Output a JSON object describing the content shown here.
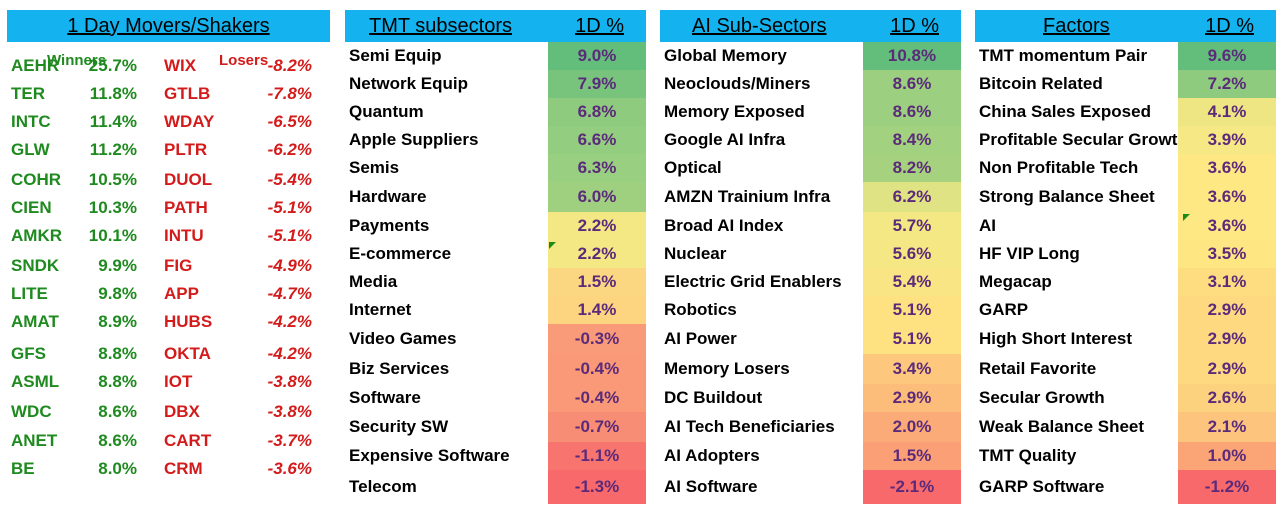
{
  "movers": {
    "title": "1 Day Movers/Shakers",
    "winners_label": "Winners",
    "losers_label": "Losers",
    "winners": [
      {
        "ticker": "AEHR",
        "pct": "25.7%"
      },
      {
        "ticker": "TER",
        "pct": "11.8%"
      },
      {
        "ticker": "INTC",
        "pct": "11.4%"
      },
      {
        "ticker": "GLW",
        "pct": "11.2%"
      },
      {
        "ticker": "COHR",
        "pct": "10.5%"
      },
      {
        "ticker": "CIEN",
        "pct": "10.3%"
      },
      {
        "ticker": "AMKR",
        "pct": "10.1%"
      },
      {
        "ticker": "SNDK",
        "pct": "9.9%"
      },
      {
        "ticker": "LITE",
        "pct": "9.8%"
      },
      {
        "ticker": "AMAT",
        "pct": "8.9%"
      },
      {
        "ticker": "GFS",
        "pct": "8.8%"
      },
      {
        "ticker": "ASML",
        "pct": "8.8%"
      },
      {
        "ticker": "WDC",
        "pct": "8.6%"
      },
      {
        "ticker": "ANET",
        "pct": "8.6%"
      },
      {
        "ticker": "BE",
        "pct": "8.0%"
      }
    ],
    "losers": [
      {
        "ticker": "WIX",
        "pct": "-8.2%"
      },
      {
        "ticker": "GTLB",
        "pct": "-7.8%"
      },
      {
        "ticker": "WDAY",
        "pct": "-6.5%"
      },
      {
        "ticker": "PLTR",
        "pct": "-6.2%"
      },
      {
        "ticker": "DUOL",
        "pct": "-5.4%"
      },
      {
        "ticker": "PATH",
        "pct": "-5.1%"
      },
      {
        "ticker": "INTU",
        "pct": "-5.1%"
      },
      {
        "ticker": "FIG",
        "pct": "-4.9%"
      },
      {
        "ticker": "APP",
        "pct": "-4.7%"
      },
      {
        "ticker": "HUBS",
        "pct": "-4.2%"
      },
      {
        "ticker": "OKTA",
        "pct": "-4.2%"
      },
      {
        "ticker": "IOT",
        "pct": "-3.8%"
      },
      {
        "ticker": "DBX",
        "pct": "-3.8%"
      },
      {
        "ticker": "CART",
        "pct": "-3.7%"
      },
      {
        "ticker": "CRM",
        "pct": "-3.6%"
      }
    ]
  },
  "tmt": {
    "title": "TMT subsectors",
    "col": "1D %",
    "rows": [
      {
        "name": "Semi Equip",
        "pct": "9.0%",
        "color": "#63be7b"
      },
      {
        "name": "Network Equip",
        "pct": "7.9%",
        "color": "#79c47d"
      },
      {
        "name": "Quantum",
        "pct": "6.8%",
        "color": "#8ecb7e"
      },
      {
        "name": "Apple Suppliers",
        "pct": "6.6%",
        "color": "#93cd7f"
      },
      {
        "name": "Semis",
        "pct": "6.3%",
        "color": "#98cf80"
      },
      {
        "name": "Hardware",
        "pct": "6.0%",
        "color": "#9ed080"
      },
      {
        "name": "Payments",
        "pct": "2.2%",
        "color": "#f4e884"
      },
      {
        "name": "E-commerce",
        "pct": "2.2%",
        "color": "#f4e884"
      },
      {
        "name": "Media",
        "pct": "1.5%",
        "color": "#fcd781"
      },
      {
        "name": "Internet",
        "pct": "1.4%",
        "color": "#fdd480"
      },
      {
        "name": "Video Games",
        "pct": "-0.3%",
        "color": "#f99a78"
      },
      {
        "name": "Biz Services",
        "pct": "-0.4%",
        "color": "#f99977"
      },
      {
        "name": "Software",
        "pct": "-0.4%",
        "color": "#f99977"
      },
      {
        "name": "Security SW",
        "pct": "-0.7%",
        "color": "#f88d75"
      },
      {
        "name": "Expensive Software",
        "pct": "-1.1%",
        "color": "#f8756f"
      },
      {
        "name": "Telecom",
        "pct": "-1.3%",
        "color": "#f8696b"
      }
    ]
  },
  "ai": {
    "title": "AI Sub-Sectors",
    "col": "1D %",
    "rows": [
      {
        "name": "Global Memory",
        "pct": "10.8%",
        "color": "#63be7b"
      },
      {
        "name": "Neoclouds/Miners",
        "pct": "8.6%",
        "color": "#9ccf7f"
      },
      {
        "name": "Memory Exposed",
        "pct": "8.6%",
        "color": "#9ccf7f"
      },
      {
        "name": "Google AI Infra",
        "pct": "8.4%",
        "color": "#a2d17f"
      },
      {
        "name": "Optical",
        "pct": "8.2%",
        "color": "#a6d27f"
      },
      {
        "name": "AMZN Trainium Infra",
        "pct": "6.2%",
        "color": "#e0e383"
      },
      {
        "name": "Broad AI Index",
        "pct": "5.7%",
        "color": "#f3e884"
      },
      {
        "name": "Nuclear",
        "pct": "5.6%",
        "color": "#f5e884"
      },
      {
        "name": "Electric Grid Enablers",
        "pct": "5.4%",
        "color": "#f9e584"
      },
      {
        "name": "Robotics",
        "pct": "5.1%",
        "color": "#fee282"
      },
      {
        "name": "AI Power",
        "pct": "5.1%",
        "color": "#fee282"
      },
      {
        "name": "Memory Losers",
        "pct": "3.4%",
        "color": "#fdc77d"
      },
      {
        "name": "DC Buildout",
        "pct": "2.9%",
        "color": "#fcbd7b"
      },
      {
        "name": "AI Tech Beneficiaries",
        "pct": "2.0%",
        "color": "#fbab78"
      },
      {
        "name": "AI Adopters",
        "pct": "1.5%",
        "color": "#fba076"
      },
      {
        "name": "AI Software",
        "pct": "-2.1%",
        "color": "#f8696b"
      }
    ]
  },
  "factors": {
    "title": "Factors",
    "col": "1D %",
    "rows": [
      {
        "name": "TMT momentum Pair",
        "pct": "9.6%",
        "color": "#63be7b"
      },
      {
        "name": "Bitcoin Related",
        "pct": "7.2%",
        "color": "#8fcb7e"
      },
      {
        "name": "China Sales Exposed",
        "pct": "4.1%",
        "color": "#eee683"
      },
      {
        "name": "Profitable Secular Growth",
        "pct": "3.9%",
        "color": "#f6e884"
      },
      {
        "name": "Non Profitable Tech",
        "pct": "3.6%",
        "color": "#fee883"
      },
      {
        "name": "Strong Balance Sheet",
        "pct": "3.6%",
        "color": "#fee883"
      },
      {
        "name": "AI",
        "pct": "3.6%",
        "color": "#fee883"
      },
      {
        "name": "HF VIP Long",
        "pct": "3.5%",
        "color": "#fee683"
      },
      {
        "name": "Megacap",
        "pct": "3.1%",
        "color": "#fedd81"
      },
      {
        "name": "GARP",
        "pct": "2.9%",
        "color": "#fed980"
      },
      {
        "name": "High Short Interest",
        "pct": "2.9%",
        "color": "#fed980"
      },
      {
        "name": "Retail Favorite",
        "pct": "2.9%",
        "color": "#fed980"
      },
      {
        "name": "Secular Growth",
        "pct": "2.6%",
        "color": "#fdd27f"
      },
      {
        "name": "Weak Balance Sheet",
        "pct": "2.1%",
        "color": "#fcc47d"
      },
      {
        "name": "TMT Quality",
        "pct": "1.0%",
        "color": "#fba576"
      },
      {
        "name": "GARP Software",
        "pct": "-1.2%",
        "color": "#f8696b"
      }
    ]
  }
}
